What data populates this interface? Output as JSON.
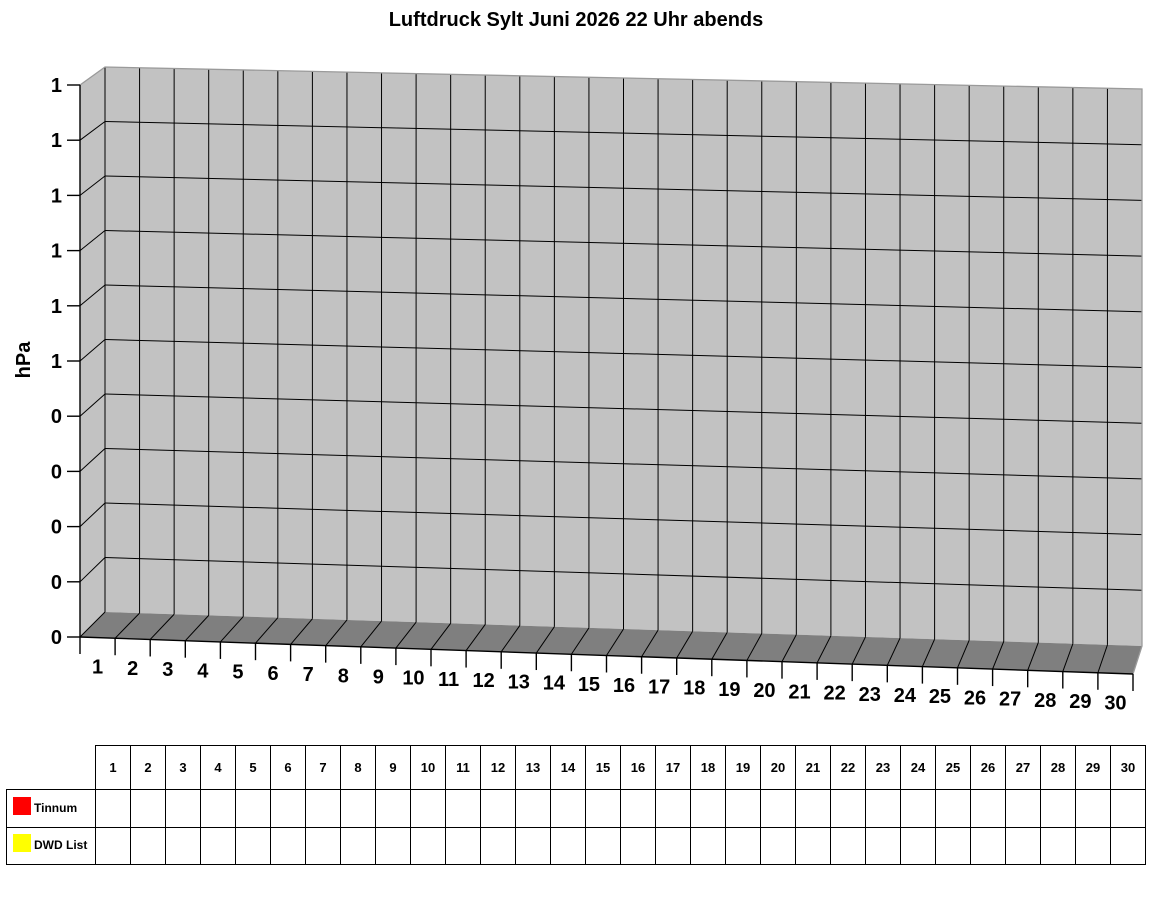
{
  "title": "Luftdruck Sylt Juni 2026 22 Uhr abends",
  "y_axis_label": "hPa",
  "y_tick_labels": [
    "1",
    "1",
    "1",
    "1",
    "1",
    "1",
    "0",
    "0",
    "0",
    "0",
    "0"
  ],
  "days": [
    "1",
    "2",
    "3",
    "4",
    "5",
    "6",
    "7",
    "8",
    "9",
    "10",
    "11",
    "12",
    "13",
    "14",
    "15",
    "16",
    "17",
    "18",
    "19",
    "20",
    "21",
    "22",
    "23",
    "24",
    "25",
    "26",
    "27",
    "28",
    "29",
    "30"
  ],
  "legend_rows": [
    {
      "label": "Tinnum",
      "color": "#ff0000"
    },
    {
      "label": "DWD List",
      "color": "#ffff00"
    }
  ],
  "colors": {
    "wall": "#c2c2c2",
    "floor": "#7f7f7f",
    "gridline": "#000000",
    "edge": "#9a9a9a",
    "background": "#ffffff"
  },
  "chart_data": {
    "type": "bar",
    "subtype": "3d-column",
    "title": "Luftdruck Sylt Juni 2026 22 Uhr abends",
    "xlabel": "",
    "ylabel": "hPa",
    "categories": [
      "1",
      "2",
      "3",
      "4",
      "5",
      "6",
      "7",
      "8",
      "9",
      "10",
      "11",
      "12",
      "13",
      "14",
      "15",
      "16",
      "17",
      "18",
      "19",
      "20",
      "21",
      "22",
      "23",
      "24",
      "25",
      "26",
      "27",
      "28",
      "29",
      "30"
    ],
    "y_axis_tick_labels_shown": [
      "1",
      "1",
      "1",
      "1",
      "1",
      "1",
      "0",
      "0",
      "0",
      "0",
      "0"
    ],
    "series": [
      {
        "name": "Tinnum",
        "color": "#ff0000",
        "values": []
      },
      {
        "name": "DWD List",
        "color": "#ffff00",
        "values": []
      }
    ],
    "grid": true,
    "legend_position": "bottom-left of data table",
    "note": "3D chart wall and attached data table are completely empty; no data values are plotted."
  },
  "table": {
    "columns": [
      "1",
      "2",
      "3",
      "4",
      "5",
      "6",
      "7",
      "8",
      "9",
      "10",
      "11",
      "12",
      "13",
      "14",
      "15",
      "16",
      "17",
      "18",
      "19",
      "20",
      "21",
      "22",
      "23",
      "24",
      "25",
      "26",
      "27",
      "28",
      "29",
      "30"
    ],
    "rows": [
      {
        "label": "Tinnum",
        "swatch_color": "#ff0000",
        "cells": []
      },
      {
        "label": "DWD List",
        "swatch_color": "#ffff00",
        "cells": []
      }
    ]
  }
}
